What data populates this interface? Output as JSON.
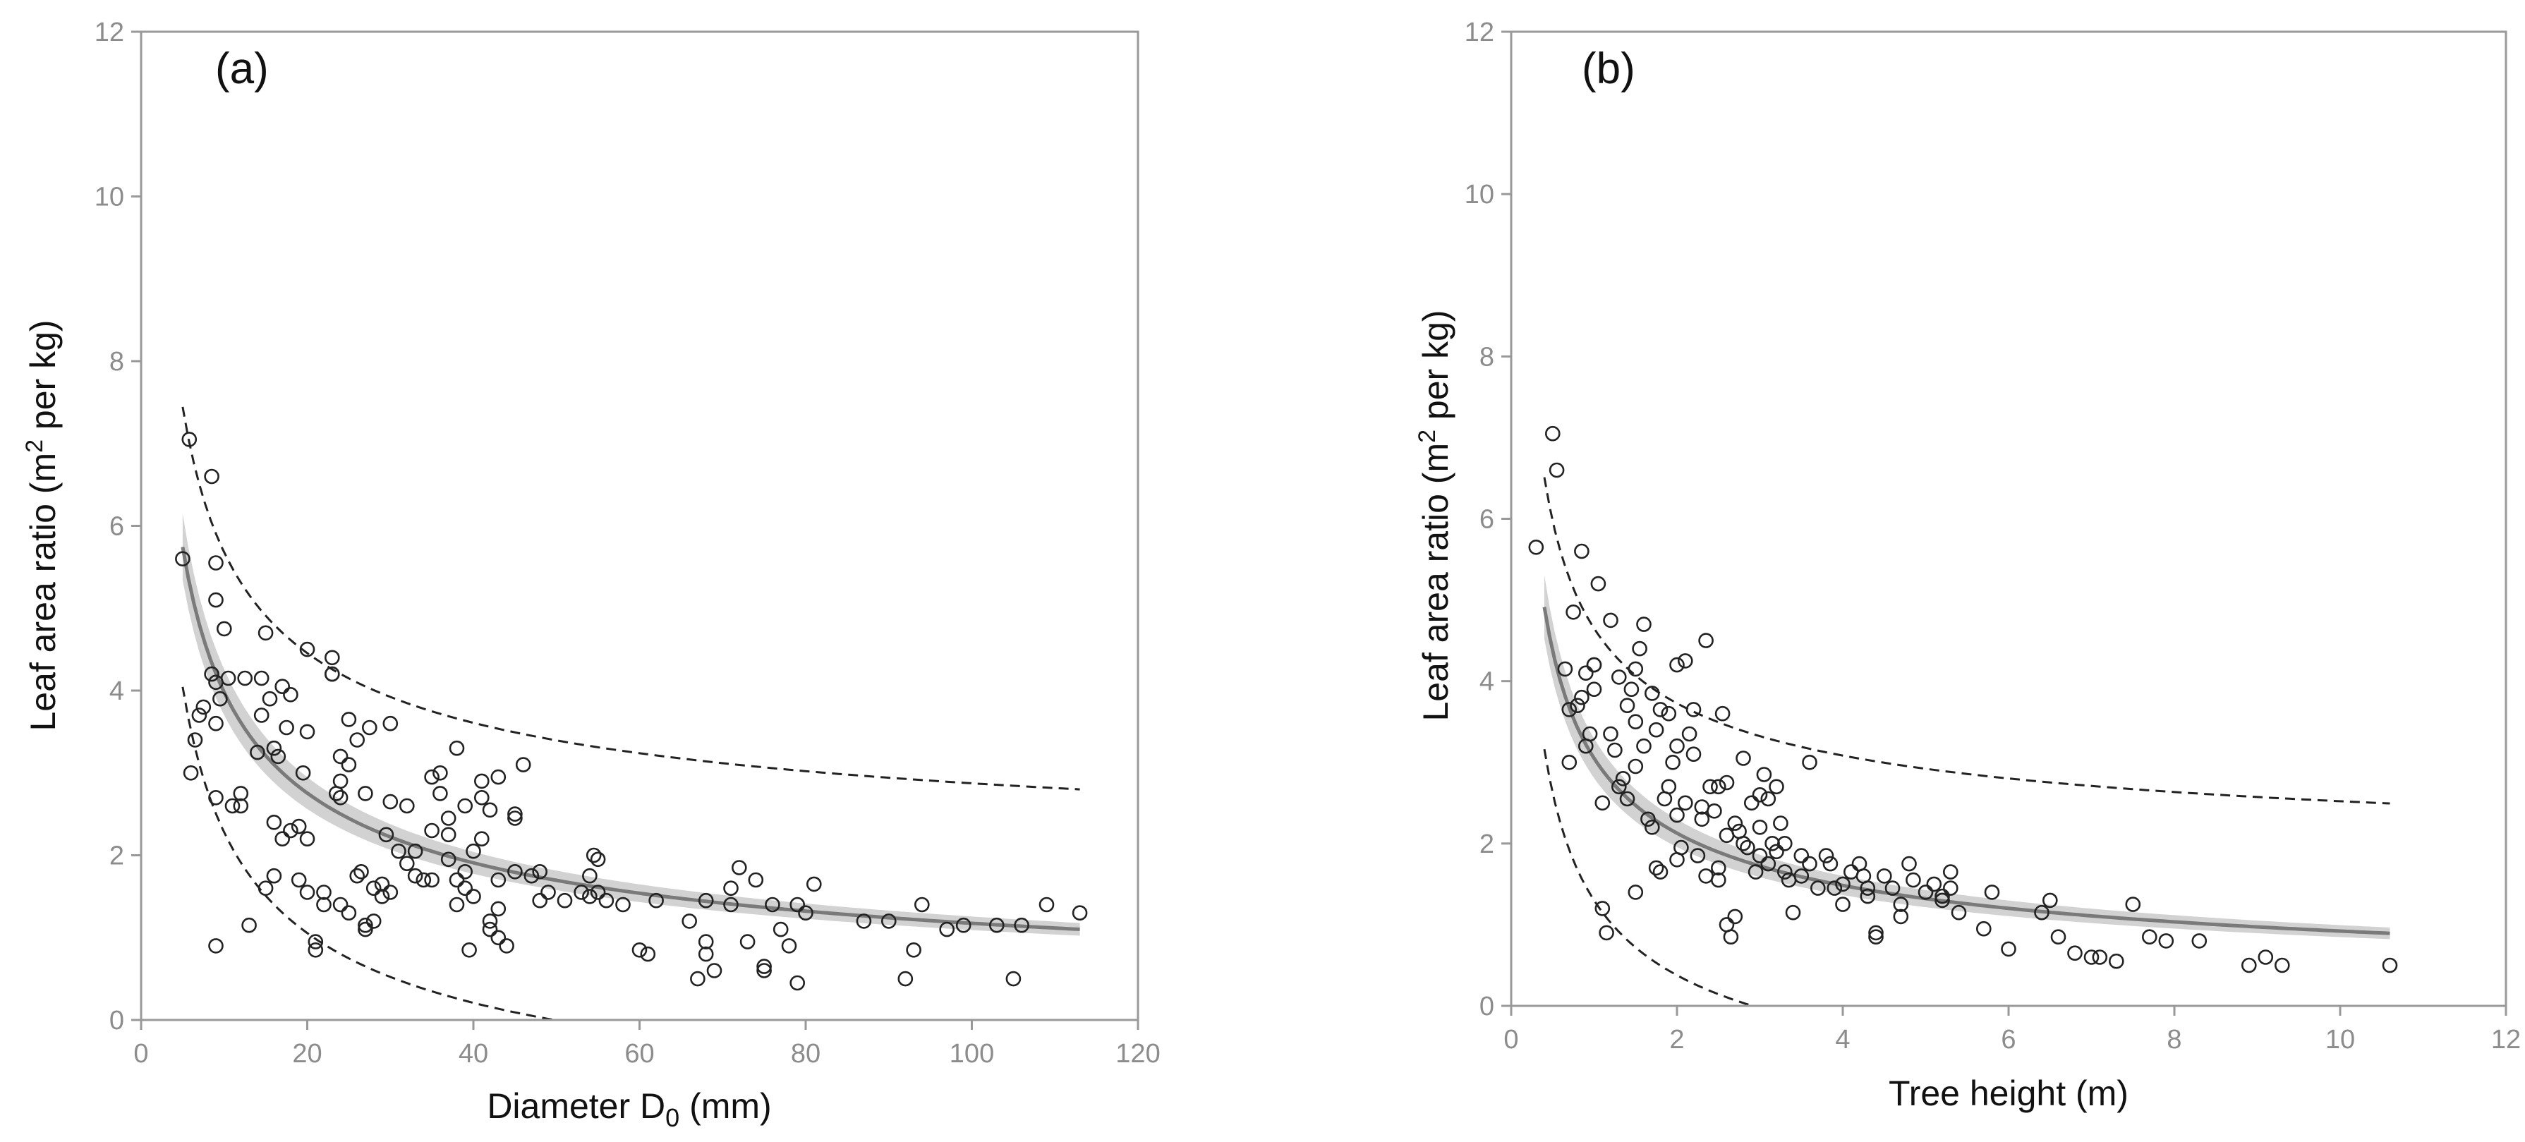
{
  "chart_data": [
    {
      "type": "scatter",
      "panel_label": "(a)",
      "xlabel_prefix": "Diameter D",
      "xlabel_sub": "0",
      "xlabel_suffix": " (mm)",
      "ylabel_prefix": "Leaf area ratio (m",
      "ylabel_sup": "2",
      "ylabel_suffix": " per kg)",
      "xlim": [
        0,
        120
      ],
      "ylim": [
        0,
        12
      ],
      "xticks": [
        0,
        20,
        40,
        60,
        80,
        100,
        120
      ],
      "yticks": [
        0,
        2,
        4,
        6,
        8,
        10,
        12
      ],
      "fit": {
        "model": "power",
        "a": 13.48,
        "b": -0.53,
        "x_range": [
          5,
          113
        ]
      },
      "confidence_band": {
        "lower_factor": 0.93,
        "upper_factor": 1.07
      },
      "prediction_interval": {
        "lower_offset": -1.7,
        "upper_offset": 1.7
      },
      "points": [
        [
          5,
          5.6
        ],
        [
          5.8,
          7.05
        ],
        [
          6,
          3
        ],
        [
          6.5,
          3.4
        ],
        [
          7,
          3.7
        ],
        [
          7.5,
          3.8
        ],
        [
          8.5,
          6.6
        ],
        [
          9,
          5.55
        ],
        [
          8.5,
          4.2
        ],
        [
          9,
          5.1
        ],
        [
          9,
          4.1
        ],
        [
          9,
          3.6
        ],
        [
          9.5,
          3.9
        ],
        [
          9,
          2.7
        ],
        [
          9,
          0.9
        ],
        [
          10,
          4.75
        ],
        [
          10.5,
          4.15
        ],
        [
          11,
          2.6
        ],
        [
          12,
          2.6
        ],
        [
          12,
          2.75
        ],
        [
          12.5,
          4.15
        ],
        [
          13,
          1.15
        ],
        [
          14,
          3.25
        ],
        [
          14.5,
          4.15
        ],
        [
          14.5,
          3.7
        ],
        [
          15,
          1.6
        ],
        [
          15.5,
          3.9
        ],
        [
          15,
          4.7
        ],
        [
          16,
          3.3
        ],
        [
          16,
          2.4
        ],
        [
          16.5,
          3.2
        ],
        [
          16,
          1.75
        ],
        [
          17,
          4.05
        ],
        [
          17,
          2.2
        ],
        [
          17.5,
          3.55
        ],
        [
          18,
          3.95
        ],
        [
          18,
          2.3
        ],
        [
          19,
          2.35
        ],
        [
          19,
          1.7
        ],
        [
          19.5,
          3
        ],
        [
          20,
          4.5
        ],
        [
          20,
          3.5
        ],
        [
          20,
          2.2
        ],
        [
          20,
          1.55
        ],
        [
          21,
          0.95
        ],
        [
          21,
          0.85
        ],
        [
          22,
          1.55
        ],
        [
          22,
          1.4
        ],
        [
          23,
          4.2
        ],
        [
          23,
          4.2
        ],
        [
          23.5,
          2.75
        ],
        [
          23,
          4.4
        ],
        [
          24,
          3.2
        ],
        [
          24,
          2.7
        ],
        [
          24,
          2.9
        ],
        [
          24,
          1.4
        ],
        [
          25,
          3.65
        ],
        [
          25,
          3.1
        ],
        [
          25,
          1.3
        ],
        [
          26,
          3.4
        ],
        [
          26,
          1.75
        ],
        [
          26.5,
          1.8
        ],
        [
          27,
          2.75
        ],
        [
          27,
          1.15
        ],
        [
          27,
          1.1
        ],
        [
          27.5,
          3.55
        ],
        [
          28,
          1.2
        ],
        [
          28,
          1.6
        ],
        [
          29,
          1.5
        ],
        [
          29,
          1.65
        ],
        [
          29.5,
          2.25
        ],
        [
          30,
          3.6
        ],
        [
          30,
          2.65
        ],
        [
          30,
          1.55
        ],
        [
          31,
          2.05
        ],
        [
          32,
          2.6
        ],
        [
          32,
          1.9
        ],
        [
          33,
          2.05
        ],
        [
          33,
          1.75
        ],
        [
          34,
          1.7
        ],
        [
          35,
          2.3
        ],
        [
          35,
          1.7
        ],
        [
          35,
          2.95
        ],
        [
          36,
          3
        ],
        [
          36,
          2.75
        ],
        [
          37,
          2.45
        ],
        [
          37,
          2.25
        ],
        [
          37,
          1.95
        ],
        [
          38,
          3.3
        ],
        [
          38,
          1.7
        ],
        [
          38,
          1.4
        ],
        [
          39,
          2.6
        ],
        [
          39,
          1.8
        ],
        [
          39,
          1.6
        ],
        [
          39.5,
          0.85
        ],
        [
          40,
          2.05
        ],
        [
          40,
          1.5
        ],
        [
          41,
          2.9
        ],
        [
          41,
          2.2
        ],
        [
          41,
          2.7
        ],
        [
          42,
          2.55
        ],
        [
          42,
          1.2
        ],
        [
          42,
          1.1
        ],
        [
          43,
          2.95
        ],
        [
          43,
          1.7
        ],
        [
          43,
          1.35
        ],
        [
          43,
          1.0
        ],
        [
          44,
          0.9
        ],
        [
          45,
          2.5
        ],
        [
          45,
          2.45
        ],
        [
          45,
          1.8
        ],
        [
          46,
          3.1
        ],
        [
          47,
          1.75
        ],
        [
          48,
          1.8
        ],
        [
          48,
          1.45
        ],
        [
          49,
          1.55
        ],
        [
          51,
          1.45
        ],
        [
          53,
          1.55
        ],
        [
          54,
          1.75
        ],
        [
          54,
          1.5
        ],
        [
          54.5,
          2.0
        ],
        [
          55,
          1.95
        ],
        [
          55,
          1.55
        ],
        [
          56,
          1.45
        ],
        [
          58,
          1.4
        ],
        [
          60,
          0.85
        ],
        [
          61,
          0.8
        ],
        [
          62,
          1.45
        ],
        [
          66,
          1.2
        ],
        [
          67,
          0.5
        ],
        [
          68,
          1.45
        ],
        [
          68,
          0.95
        ],
        [
          68,
          0.8
        ],
        [
          69,
          0.6
        ],
        [
          71,
          1.6
        ],
        [
          71,
          1.4
        ],
        [
          72,
          1.85
        ],
        [
          73,
          0.95
        ],
        [
          74,
          1.7
        ],
        [
          75,
          0.65
        ],
        [
          75,
          0.6
        ],
        [
          76,
          1.4
        ],
        [
          77,
          1.1
        ],
        [
          78,
          0.9
        ],
        [
          79,
          1.4
        ],
        [
          79,
          0.45
        ],
        [
          80,
          1.3
        ],
        [
          81,
          1.65
        ],
        [
          87,
          1.2
        ],
        [
          90,
          1.2
        ],
        [
          92,
          0.5
        ],
        [
          93,
          0.85
        ],
        [
          94,
          1.4
        ],
        [
          97,
          1.1
        ],
        [
          99,
          1.15
        ],
        [
          103,
          1.15
        ],
        [
          105,
          0.5
        ],
        [
          106,
          1.15
        ],
        [
          109,
          1.4
        ],
        [
          113,
          1.3
        ]
      ]
    },
    {
      "type": "scatter",
      "panel_label": "(b)",
      "xlabel_prefix": "Tree height (m)",
      "xlabel_sub": "",
      "xlabel_suffix": "",
      "ylabel_prefix": "Leaf area ratio (m",
      "ylabel_sup": "2",
      "ylabel_suffix": " per kg)",
      "xlim": [
        0,
        12
      ],
      "ylim": [
        0,
        12
      ],
      "xticks": [
        0,
        2,
        4,
        6,
        8,
        10,
        12
      ],
      "yticks": [
        0,
        2,
        4,
        6,
        8,
        10,
        12
      ],
      "fit": {
        "model": "power",
        "a": 3.05,
        "b": -0.52,
        "x_range": [
          0.4,
          10.6
        ]
      },
      "confidence_band": {
        "lower_factor": 0.92,
        "upper_factor": 1.08
      },
      "prediction_interval": {
        "lower_offset": -1.75,
        "upper_offset": 1.6
      },
      "points": [
        [
          0.3,
          5.65
        ],
        [
          0.5,
          7.05
        ],
        [
          0.55,
          6.6
        ],
        [
          0.65,
          4.15
        ],
        [
          0.7,
          3.65
        ],
        [
          0.7,
          3.0
        ],
        [
          0.75,
          4.85
        ],
        [
          0.8,
          3.7
        ],
        [
          0.85,
          5.6
        ],
        [
          0.85,
          3.8
        ],
        [
          0.9,
          3.2
        ],
        [
          0.9,
          4.1
        ],
        [
          0.95,
          3.35
        ],
        [
          1,
          4.2
        ],
        [
          1,
          4.2
        ],
        [
          1,
          3.9
        ],
        [
          1.05,
          5.2
        ],
        [
          1.1,
          2.5
        ],
        [
          1.1,
          1.2
        ],
        [
          1.15,
          0.9
        ],
        [
          1.2,
          4.75
        ],
        [
          1.2,
          3.35
        ],
        [
          1.25,
          3.15
        ],
        [
          1.3,
          2.7
        ],
        [
          1.3,
          4.05
        ],
        [
          1.35,
          2.8
        ],
        [
          1.4,
          3.7
        ],
        [
          1.4,
          2.55
        ],
        [
          1.45,
          3.9
        ],
        [
          1.5,
          4.15
        ],
        [
          1.5,
          3.5
        ],
        [
          1.5,
          2.95
        ],
        [
          1.5,
          1.4
        ],
        [
          1.55,
          4.4
        ],
        [
          1.6,
          4.7
        ],
        [
          1.6,
          3.2
        ],
        [
          1.65,
          2.3
        ],
        [
          1.7,
          3.85
        ],
        [
          1.7,
          2.2
        ],
        [
          1.75,
          3.4
        ],
        [
          1.75,
          1.7
        ],
        [
          1.8,
          3.65
        ],
        [
          1.8,
          1.65
        ],
        [
          1.85,
          2.55
        ],
        [
          1.9,
          3.6
        ],
        [
          1.9,
          2.7
        ],
        [
          1.95,
          3.0
        ],
        [
          2.0,
          4.2
        ],
        [
          2.0,
          3.2
        ],
        [
          2.0,
          2.35
        ],
        [
          2.0,
          1.8
        ],
        [
          2.05,
          1.95
        ],
        [
          2.1,
          4.25
        ],
        [
          2.1,
          2.5
        ],
        [
          2.15,
          3.35
        ],
        [
          2.2,
          3.65
        ],
        [
          2.2,
          3.1
        ],
        [
          2.25,
          1.85
        ],
        [
          2.3,
          2.45
        ],
        [
          2.3,
          2.3
        ],
        [
          2.35,
          4.5
        ],
        [
          2.35,
          1.6
        ],
        [
          2.4,
          2.7
        ],
        [
          2.45,
          2.4
        ],
        [
          2.5,
          2.7
        ],
        [
          2.5,
          1.7
        ],
        [
          2.5,
          1.55
        ],
        [
          2.55,
          3.6
        ],
        [
          2.6,
          2.75
        ],
        [
          2.6,
          2.1
        ],
        [
          2.6,
          1.0
        ],
        [
          2.65,
          0.85
        ],
        [
          2.7,
          2.25
        ],
        [
          2.7,
          1.1
        ],
        [
          2.75,
          2.15
        ],
        [
          2.8,
          3.05
        ],
        [
          2.8,
          2.0
        ],
        [
          2.85,
          1.95
        ],
        [
          2.9,
          2.5
        ],
        [
          2.95,
          1.65
        ],
        [
          3.0,
          2.6
        ],
        [
          3.0,
          2.2
        ],
        [
          3.0,
          1.85
        ],
        [
          3.05,
          2.85
        ],
        [
          3.1,
          2.55
        ],
        [
          3.1,
          1.75
        ],
        [
          3.15,
          2.0
        ],
        [
          3.2,
          2.7
        ],
        [
          3.2,
          1.9
        ],
        [
          3.25,
          2.25
        ],
        [
          3.3,
          2.0
        ],
        [
          3.3,
          1.65
        ],
        [
          3.35,
          1.55
        ],
        [
          3.4,
          1.15
        ],
        [
          3.5,
          1.85
        ],
        [
          3.5,
          1.6
        ],
        [
          3.6,
          3.0
        ],
        [
          3.6,
          1.75
        ],
        [
          3.7,
          1.45
        ],
        [
          3.8,
          1.85
        ],
        [
          3.85,
          1.75
        ],
        [
          3.9,
          1.45
        ],
        [
          4.0,
          1.5
        ],
        [
          4.0,
          1.25
        ],
        [
          4.1,
          1.65
        ],
        [
          4.2,
          1.75
        ],
        [
          4.25,
          1.6
        ],
        [
          4.3,
          1.45
        ],
        [
          4.3,
          1.35
        ],
        [
          4.4,
          0.85
        ],
        [
          4.4,
          0.9
        ],
        [
          4.5,
          1.6
        ],
        [
          4.6,
          1.45
        ],
        [
          4.7,
          1.25
        ],
        [
          4.7,
          1.1
        ],
        [
          4.8,
          1.75
        ],
        [
          4.85,
          1.55
        ],
        [
          5.0,
          1.4
        ],
        [
          5.1,
          1.5
        ],
        [
          5.2,
          1.3
        ],
        [
          5.2,
          1.35
        ],
        [
          5.3,
          1.65
        ],
        [
          5.3,
          1.45
        ],
        [
          5.4,
          1.15
        ],
        [
          5.7,
          0.95
        ],
        [
          5.8,
          1.4
        ],
        [
          6.0,
          0.7
        ],
        [
          6.4,
          1.15
        ],
        [
          6.5,
          1.3
        ],
        [
          6.6,
          0.85
        ],
        [
          6.8,
          0.65
        ],
        [
          7.0,
          0.6
        ],
        [
          7.1,
          0.6
        ],
        [
          7.3,
          0.55
        ],
        [
          7.5,
          1.25
        ],
        [
          7.7,
          0.85
        ],
        [
          7.9,
          0.8
        ],
        [
          8.3,
          0.8
        ],
        [
          8.9,
          0.5
        ],
        [
          9.1,
          0.6
        ],
        [
          9.3,
          0.5
        ],
        [
          10.6,
          0.5
        ]
      ]
    }
  ]
}
